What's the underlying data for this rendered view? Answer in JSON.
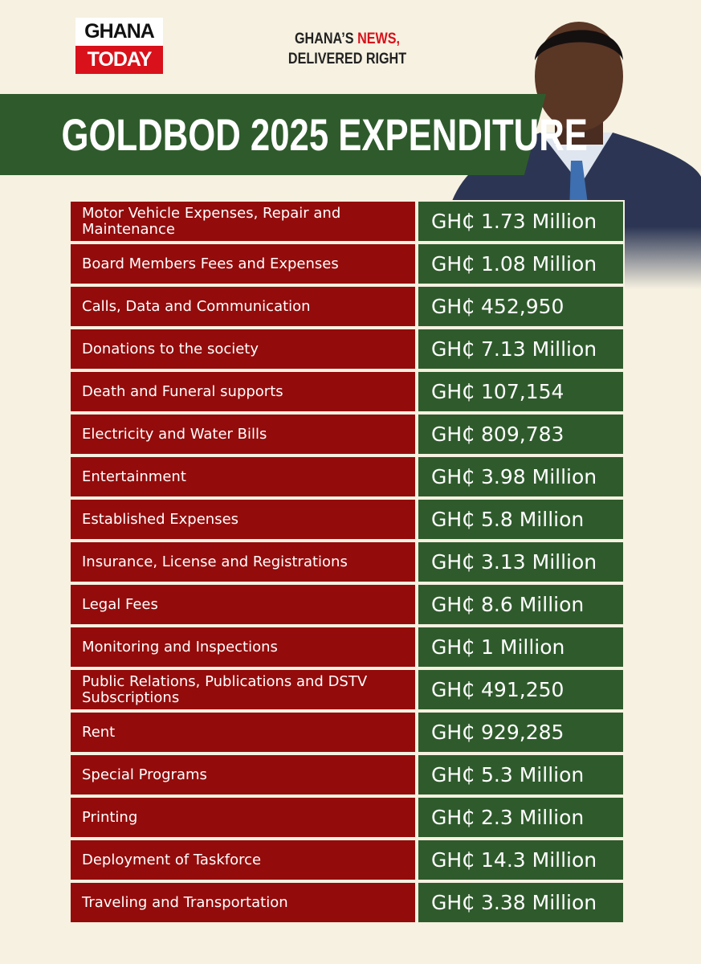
{
  "header": {
    "logo": [
      "GHANA",
      "TODAY"
    ],
    "tagline": {
      "lead": "GHANA’S",
      "highlight": "NEWS,",
      "second_line": "DELIVERED RIGHT"
    },
    "title": "GOLDBOD 2025 EXPENDITURE"
  },
  "table": {
    "rows": [
      [
        "Motor Vehicle Expenses, Repair and Maintenance",
        "GH₵ 1.73 Million"
      ],
      [
        "Board Members Fees and Expenses",
        "GH₵ 1.08 Million"
      ],
      [
        "Calls, Data and Communication",
        "GH₵ 452,950"
      ],
      [
        "Donations to the society",
        "GH₵ 7.13 Million"
      ],
      [
        "Death and Funeral supports",
        "GH₵ 107,154"
      ],
      [
        "Electricity and Water Bills",
        "GH₵ 809,783"
      ],
      [
        "Entertainment",
        "GH₵ 3.98 Million"
      ],
      [
        "Established Expenses",
        "GH₵ 5.8 Million"
      ],
      [
        "Insurance, License and Registrations",
        "GH₵ 3.13 Million"
      ],
      [
        "Legal Fees",
        "GH₵ 8.6 Million"
      ],
      [
        "Monitoring and Inspections",
        "GH₵ 1 Million"
      ],
      [
        "Public Relations, Publications and DSTV Subscriptions",
        "GH₵ 491,250"
      ],
      [
        "Rent",
        "GH₵ 929,285"
      ],
      [
        "Special Programs",
        "GH₵ 5.3 Million"
      ],
      [
        "Printing",
        "GH₵ 2.3 Million"
      ],
      [
        "Deployment of Taskforce",
        "GH₵ 14.3 Million"
      ],
      [
        "Traveling and Transportation",
        "GH₵ 3.38 Million"
      ]
    ]
  }
}
